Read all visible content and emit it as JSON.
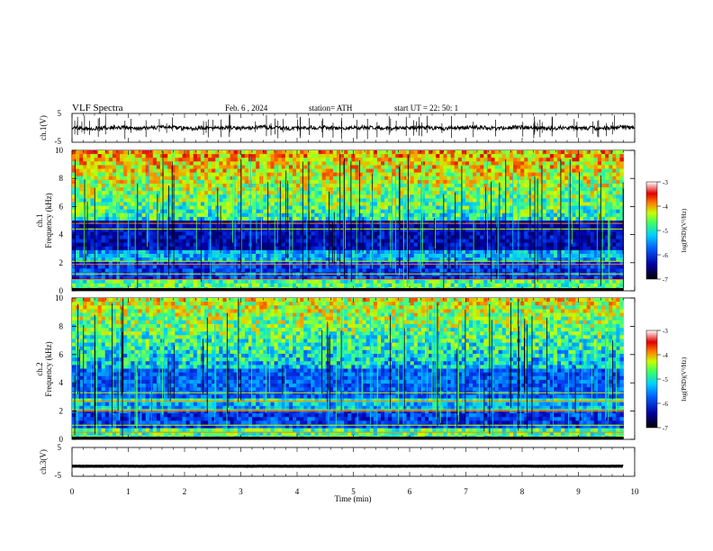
{
  "header": {
    "title": "VLF  Spectra",
    "date": "Feb. 6  , 2024",
    "station": "station= ATH",
    "start": "start  UT  =    22: 50: 1"
  },
  "colors": {
    "colormap": [
      "#000033",
      "#0000aa",
      "#0050ff",
      "#00c8ff",
      "#40ff80",
      "#c8ff00",
      "#ff8000",
      "#e00000",
      "#ffffff"
    ]
  },
  "chart_data": [
    {
      "id": "ch1-waveform",
      "type": "line",
      "ylabel": "ch.1(V)",
      "yticks": [
        "5",
        "-5"
      ],
      "ylim": [
        -5,
        5
      ],
      "xlim": [
        0,
        10
      ],
      "baseline": 0,
      "amplitude": 0.7
    },
    {
      "id": "ch1-spectrogram",
      "type": "heatmap",
      "ylabel_channel": "ch.1",
      "ylabel": "Frequency  (kHz)",
      "yticks": [
        "10",
        "8",
        "6",
        "4",
        "2",
        "0"
      ],
      "ylim": [
        0,
        10
      ],
      "xlim": [
        0,
        9.8
      ],
      "colorbar": {
        "label": "log(PSD)(V²/Hz)",
        "ticks": [
          "-3",
          "-4",
          "-5",
          "-6",
          "-7"
        ],
        "range": [
          -7,
          -3
        ]
      }
    },
    {
      "id": "ch2-spectrogram",
      "type": "heatmap",
      "ylabel_channel": "ch.2",
      "ylabel": "Frequency  (kHz)",
      "yticks": [
        "10",
        "8",
        "6",
        "4",
        "2",
        "0"
      ],
      "ylim": [
        0,
        10
      ],
      "xlim": [
        0,
        9.8
      ],
      "colorbar": {
        "label": "log(PSD)(V²/Hz)",
        "ticks": [
          "-3",
          "-4",
          "-5",
          "-6",
          "-7"
        ],
        "range": [
          -7,
          -3
        ]
      }
    },
    {
      "id": "ch3-waveform",
      "type": "line",
      "ylabel": "ch.3(V)",
      "yticks": [
        "5",
        "-5"
      ],
      "ylim": [
        -5,
        5
      ],
      "xlim": [
        0,
        9.8
      ],
      "baseline": -1.5,
      "amplitude": 0.05
    }
  ],
  "xaxis": {
    "label": "Time  (min)",
    "ticks": [
      "0",
      "1",
      "2",
      "3",
      "4",
      "5",
      "6",
      "7",
      "8",
      "9",
      "10"
    ],
    "range": [
      0,
      10
    ]
  }
}
